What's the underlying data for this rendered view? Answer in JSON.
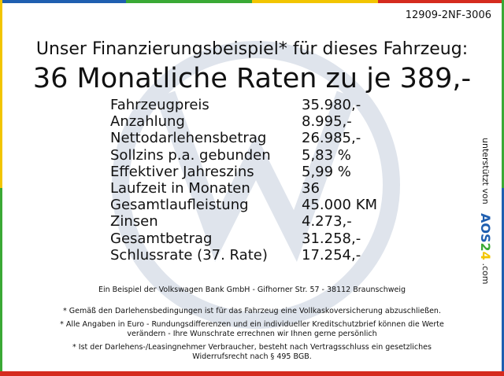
{
  "ref_code": "12909-2NF-3006",
  "headline": "Unser Finanzierungsbeispiel* für dieses Fahrzeug:",
  "subheadline": "36 Monatliche Raten zu je 389,-",
  "finance_rows": [
    {
      "label": "Fahrzeugpreis",
      "value": "35.980,-"
    },
    {
      "label": "Anzahlung",
      "value": "8.995,-"
    },
    {
      "label": "Nettodarlehensbetrag",
      "value": "26.985,-"
    },
    {
      "label": "Sollzins p.a. gebunden",
      "value": "5,83 %"
    },
    {
      "label": "Effektiver Jahreszins",
      "value": "5,99 %"
    },
    {
      "label": "Laufzeit in Monaten",
      "value": "36"
    },
    {
      "label": "Gesamtlaufleistung",
      "value": "45.000 KM"
    },
    {
      "label": "Zinsen",
      "value": "4.273,-"
    },
    {
      "label": "Gesamtbetrag",
      "value": "31.258,-"
    },
    {
      "label": "Schlussrate (37. Rate)",
      "value": "17.254,-"
    }
  ],
  "bank_line": "Ein Beispiel der Volkswagen Bank GmbH - Gifhorner Str. 57 - 38112 Braunschweig",
  "footnotes": {
    "f1": "* Gemäß den Darlehensbedingungen ist für das Fahrzeug eine Vollkaskoversicherung abzuschließen.",
    "f2a": "* Alle Angaben in Euro - Rundungsdifferenzen und ein individueller Kreditschutzbrief können die Werte",
    "f2b": "verändern - Ihre Wunschrate errechnen wir Ihnen gerne persönlich",
    "f3a": "* Ist der Darlehens-/Leasingnehmer Verbraucher, besteht nach Vertragsschluss ein gesetzliches",
    "f3b": "Widerrufsrecht nach § 495 BGB."
  },
  "sponsor": {
    "prefix": "unterstützt von",
    "logo": "AOS24",
    "suffix": ".com"
  },
  "colors": {
    "frame_red": "#d52b1e",
    "frame_yellow": "#f2c500",
    "frame_green": "#3aa935",
    "frame_blue": "#1f5fb0",
    "watermark": "#dfe4ec"
  },
  "watermark_icon": "vw-logo"
}
